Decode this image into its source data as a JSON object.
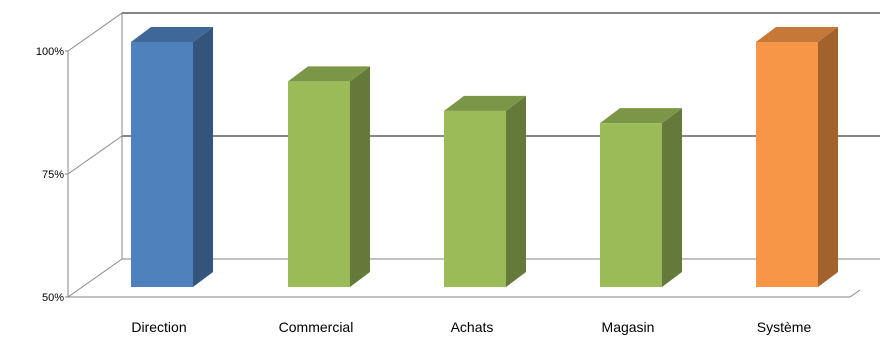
{
  "chart_data": {
    "type": "bar",
    "style": "3d-column",
    "categories": [
      "Direction",
      "Commercial",
      "Achats",
      "Magasin",
      "Système"
    ],
    "values": [
      100,
      92,
      86,
      83.5,
      100
    ],
    "ylim": [
      50,
      100
    ],
    "yticks": [
      50,
      75,
      100
    ],
    "ytick_labels": [
      "50%",
      "75%",
      "100%"
    ],
    "grid": true,
    "legend": "none",
    "colors": [
      "#4F81BD",
      "#9BBB59",
      "#9BBB59",
      "#9BBB59",
      "#F79646"
    ]
  }
}
